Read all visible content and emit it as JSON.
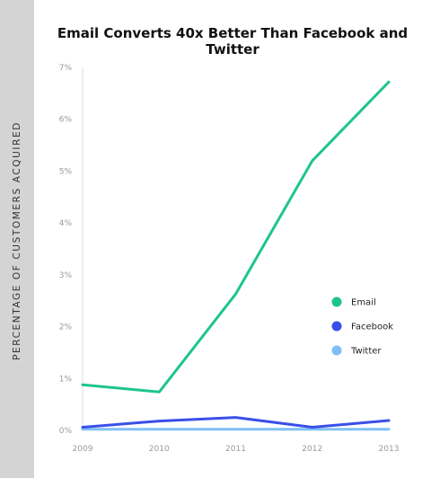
{
  "chart_data": {
    "type": "line",
    "title": "Email Converts 40x Better Than Facebook and Twitter",
    "ylabel": "PERCENTAGE OF CUSTOMERS ACQUIRED",
    "xlabel": "",
    "x": [
      "2009",
      "2010",
      "2011",
      "2012",
      "2013"
    ],
    "yticks": [
      "0%",
      "1%",
      "2%",
      "3%",
      "4%",
      "5%",
      "6%",
      "7%"
    ],
    "ylim": [
      0,
      7
    ],
    "grid": false,
    "legend_position": "right",
    "series": [
      {
        "name": "Email",
        "color": "#1ec48e",
        "values": [
          0.88,
          0.74,
          2.63,
          5.2,
          6.72
        ]
      },
      {
        "name": "Facebook",
        "color": "#3a4fe8",
        "values": [
          0.06,
          0.18,
          0.25,
          0.06,
          0.19
        ]
      },
      {
        "name": "Twitter",
        "color": "#7fbff5",
        "values": [
          0.02,
          0.02,
          0.02,
          0.02,
          0.02
        ]
      }
    ]
  }
}
